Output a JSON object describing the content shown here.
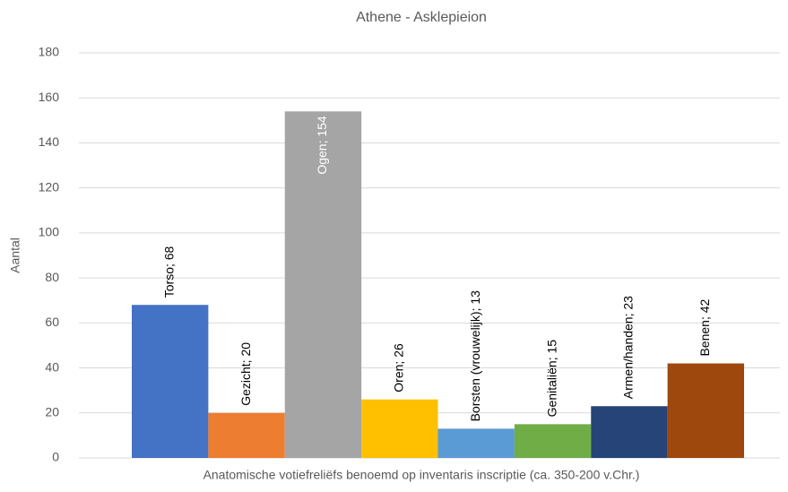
{
  "chart_data": {
    "type": "bar",
    "title": "Athene - Asklepieion",
    "x_label": "Anatomische votiefreliëfs benoemd op inventaris inscriptie (ca. 350-200 v.Chr.)",
    "y_label": "Aantal",
    "values": [
      68,
      20,
      154,
      26,
      13,
      15,
      23,
      42
    ],
    "value_labels": [
      "Torso; 68",
      "Gezicht; 20",
      "Ogen; 154",
      "Oren; 26",
      "Borsten (vrouwelijk); 13",
      "Genitaliën; 15",
      "Armen/handen; 23",
      "Benen; 42"
    ],
    "colors": [
      "#4472c4",
      "#ed7d31",
      "#a5a5a5",
      "#ffc000",
      "#5b9bd5",
      "#70ad47",
      "#264478",
      "#9e480e"
    ],
    "ylim": [
      0,
      180
    ],
    "yticks": [
      0,
      20,
      40,
      60,
      80,
      100,
      120,
      140,
      160,
      180
    ],
    "grid": true
  }
}
